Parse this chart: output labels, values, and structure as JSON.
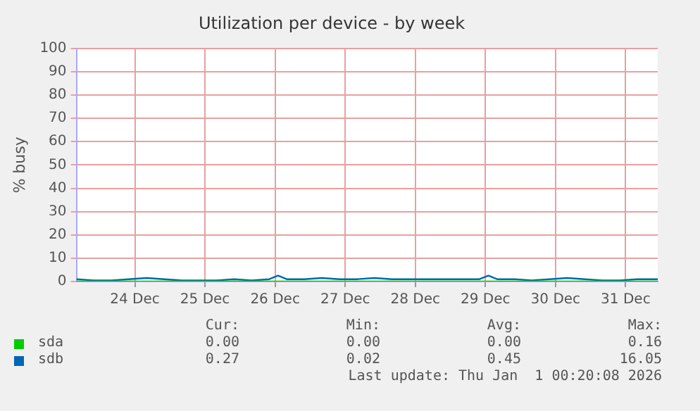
{
  "chart_data": {
    "type": "line",
    "title": "Utilization per device - by week",
    "ylabel": "% busy",
    "xlim": [
      "--12-23T04:00",
      "--12-31T11:00"
    ],
    "xticks": [
      {
        "value": "--12-24",
        "label": "24 Dec"
      },
      {
        "value": "--12-25",
        "label": "25 Dec"
      },
      {
        "value": "--12-26",
        "label": "26 Dec"
      },
      {
        "value": "--12-27",
        "label": "27 Dec"
      },
      {
        "value": "--12-28",
        "label": "28 Dec"
      },
      {
        "value": "--12-29",
        "label": "29 Dec"
      },
      {
        "value": "--12-30",
        "label": "30 Dec"
      },
      {
        "value": "--12-31",
        "label": "31 Dec"
      }
    ],
    "ylim": [
      0,
      100
    ],
    "yticks": [
      0,
      10,
      20,
      30,
      40,
      50,
      60,
      70,
      80,
      90,
      100
    ],
    "grid": true,
    "legend": "bottom left",
    "marker": "none",
    "line_style": "solid",
    "x": [
      "--12-23T04:00",
      "--12-23T10:00",
      "--12-23T16:00",
      "--12-23T22:00",
      "--12-24T04:00",
      "--12-24T10:00",
      "--12-24T16:00",
      "--12-24T22:00",
      "--12-25T04:00",
      "--12-25T10:00",
      "--12-25T16:00",
      "--12-25T22:00",
      "--12-26T01:00",
      "--12-26T04:00",
      "--12-26T10:00",
      "--12-26T16:00",
      "--12-26T22:00",
      "--12-27T04:00",
      "--12-27T10:00",
      "--12-27T16:00",
      "--12-27T22:00",
      "--12-28T04:00",
      "--12-28T10:00",
      "--12-28T16:00",
      "--12-28T22:00",
      "--12-29T01:00",
      "--12-29T04:00",
      "--12-29T10:00",
      "--12-29T16:00",
      "--12-29T22:00",
      "--12-30T04:00",
      "--12-30T10:00",
      "--12-30T16:00",
      "--12-30T22:00",
      "--12-31T04:00",
      "--12-31T11:00"
    ],
    "series": [
      {
        "name": "sda",
        "color": "#00cc00",
        "values": [
          0,
          0,
          0,
          0,
          0,
          0,
          0,
          0,
          0,
          0,
          0,
          0,
          0,
          0,
          0,
          0,
          0,
          0,
          0,
          0,
          0,
          0,
          0,
          0,
          0,
          0,
          0,
          0,
          0,
          0,
          0,
          0,
          0,
          0,
          0,
          0
        ]
      },
      {
        "name": "sdb",
        "color": "#0066b3",
        "values": [
          1,
          0.5,
          0.5,
          1,
          1.5,
          1,
          0.5,
          0.5,
          0.5,
          1,
          0.5,
          1,
          2.5,
          1,
          1,
          1.5,
          1,
          1,
          1.5,
          1,
          1,
          1,
          1,
          1,
          1,
          2.5,
          1,
          1,
          0.5,
          1,
          1.5,
          1,
          0.5,
          0.5,
          1,
          1
        ]
      }
    ],
    "annotations": [
      "Cur:",
      "Min:",
      "Avg:",
      "Max:",
      "0.00",
      "0.00",
      "0.00",
      "0.16",
      "0.27",
      "0.02",
      "0.45",
      "16.05",
      "Last update: Thu Jan  1 00:20:08 2026"
    ]
  }
}
